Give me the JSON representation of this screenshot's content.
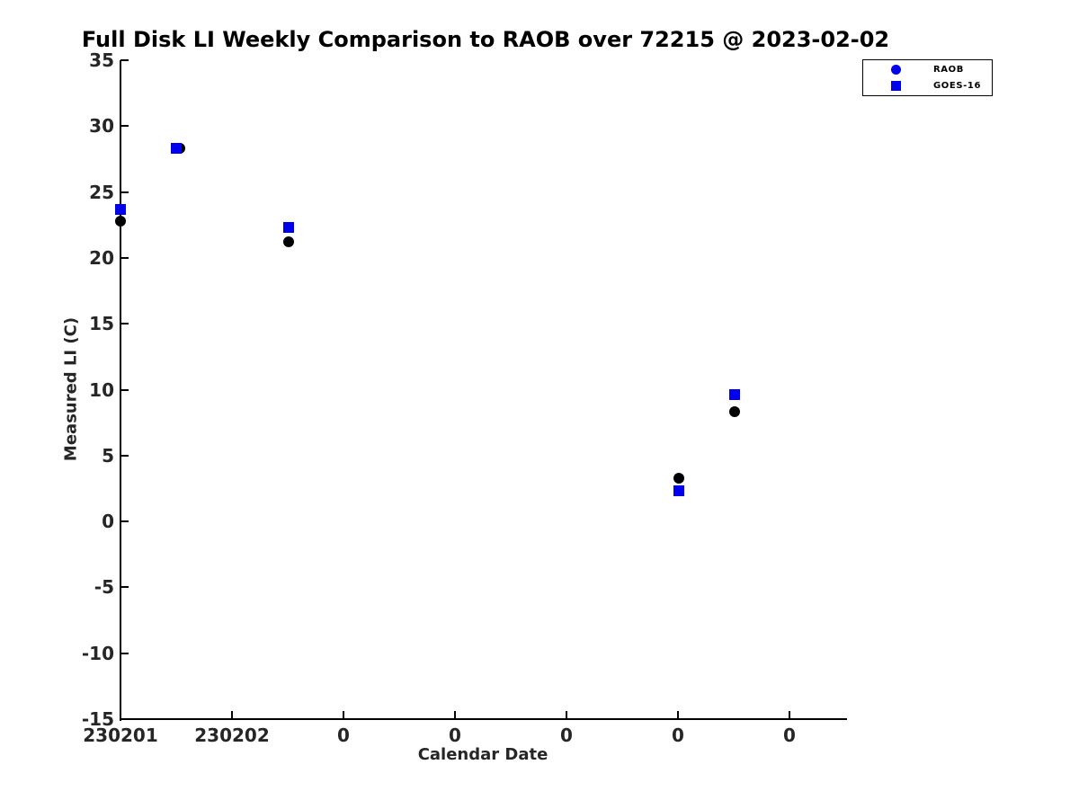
{
  "figure": {
    "background": "#FFFFFF",
    "axis_color": "#000000"
  },
  "chart_data": {
    "type": "scatter",
    "title": "Full Disk LI Weekly Comparison to RAOB over 72215 @ 2023-02-02",
    "xlabel": "Calendar Date",
    "ylabel": "Measured LI (C)",
    "x_tick_labels": [
      "230201",
      "230202",
      "0",
      "0",
      "0",
      "0",
      "0"
    ],
    "x_tick_positions": [
      0,
      1,
      2,
      3,
      4,
      5,
      6
    ],
    "xlim": [
      0,
      6.5
    ],
    "y_ticks": [
      35,
      30,
      25,
      20,
      15,
      10,
      5,
      0,
      -5,
      -10,
      -15
    ],
    "ylim": [
      -15,
      35
    ],
    "grid": false,
    "legend_position": "top-right",
    "series": [
      {
        "name": "RAOB",
        "marker": "circle",
        "color": "#000000",
        "legend_marker_color": "#0000EE",
        "points": [
          {
            "x": 0.0,
            "y": 22.8
          },
          {
            "x": 0.53,
            "y": 28.3
          },
          {
            "x": 1.51,
            "y": 21.2
          },
          {
            "x": 5.01,
            "y": 3.3
          },
          {
            "x": 5.51,
            "y": 8.3
          }
        ]
      },
      {
        "name": "GOES-16",
        "marker": "square",
        "color": "#0000EE",
        "legend_marker_color": "#0000EE",
        "points": [
          {
            "x": 0.0,
            "y": 23.7
          },
          {
            "x": 0.5,
            "y": 28.3
          },
          {
            "x": 1.51,
            "y": 22.3
          },
          {
            "x": 5.01,
            "y": 2.3
          },
          {
            "x": 5.51,
            "y": 9.6
          }
        ]
      }
    ]
  }
}
